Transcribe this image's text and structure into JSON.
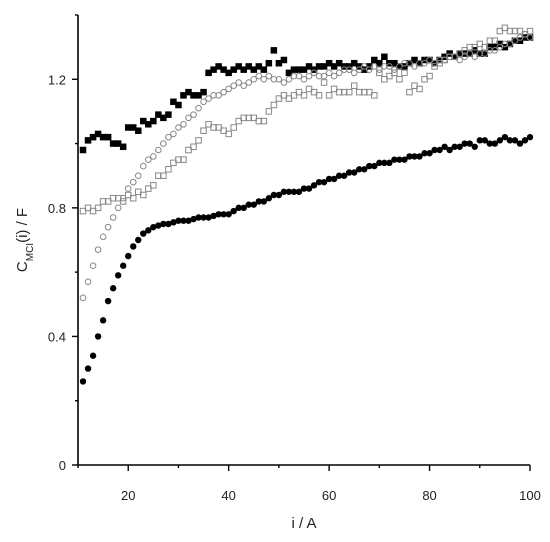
{
  "chart_data": {
    "type": "scatter",
    "xlabel": "i / A",
    "ylabel_main": "C",
    "ylabel_sub": "MCI",
    "ylabel_rest": "(i) / F",
    "xlim": [
      10,
      100
    ],
    "ylim": [
      0,
      1.4
    ],
    "x_ticks": [
      20,
      40,
      60,
      80,
      100
    ],
    "x_tick_labels": [
      "20",
      "40",
      "60",
      "80",
      "100"
    ],
    "y_ticks": [
      0,
      0.4,
      0.8,
      1.2
    ],
    "y_tick_labels": [
      "0",
      "0.4",
      "0.8",
      "1.2"
    ],
    "grid": false,
    "series": [
      {
        "marker": "square",
        "filled": true,
        "color": "#000000",
        "x": [
          11,
          12,
          13,
          14,
          15,
          16,
          17,
          18,
          19,
          20,
          21,
          22,
          23,
          24,
          25,
          26,
          27,
          28,
          29,
          30,
          31,
          32,
          33,
          34,
          35,
          36,
          37,
          38,
          39,
          40,
          41,
          42,
          43,
          44,
          45,
          46,
          47,
          48,
          49,
          50,
          51,
          52,
          53,
          54,
          55,
          56,
          57,
          58,
          59,
          60,
          61,
          62,
          63,
          64,
          65,
          66,
          67,
          68,
          69,
          70,
          71,
          72,
          73,
          74,
          75,
          76,
          77,
          78,
          79,
          80,
          81,
          82,
          83,
          84,
          85,
          86,
          87,
          88,
          89,
          90,
          91,
          92,
          93,
          94,
          95,
          96,
          97,
          98,
          99,
          100
        ],
        "y": [
          0.98,
          1.01,
          1.02,
          1.03,
          1.02,
          1.02,
          1.0,
          1.0,
          0.99,
          1.05,
          1.05,
          1.04,
          1.07,
          1.06,
          1.07,
          1.09,
          1.08,
          1.09,
          1.13,
          1.12,
          1.15,
          1.16,
          1.15,
          1.15,
          1.16,
          1.22,
          1.23,
          1.24,
          1.23,
          1.22,
          1.23,
          1.24,
          1.23,
          1.24,
          1.23,
          1.24,
          1.23,
          1.25,
          1.29,
          1.25,
          1.26,
          1.22,
          1.23,
          1.23,
          1.23,
          1.24,
          1.23,
          1.24,
          1.24,
          1.25,
          1.24,
          1.25,
          1.24,
          1.24,
          1.25,
          1.24,
          1.23,
          1.24,
          1.26,
          1.25,
          1.27,
          1.25,
          1.25,
          1.24,
          1.24,
          1.25,
          1.26,
          1.25,
          1.26,
          1.26,
          1.25,
          1.26,
          1.27,
          1.28,
          1.27,
          1.28,
          1.28,
          1.28,
          1.29,
          1.28,
          1.28,
          1.3,
          1.3,
          1.31,
          1.3,
          1.31,
          1.32,
          1.32,
          1.33,
          1.33
        ]
      },
      {
        "marker": "square",
        "filled": false,
        "color": "#888888",
        "x": [
          11,
          12,
          13,
          14,
          15,
          16,
          17,
          18,
          19,
          20,
          21,
          22,
          23,
          24,
          25,
          26,
          27,
          28,
          29,
          30,
          31,
          32,
          33,
          34,
          35,
          36,
          37,
          38,
          39,
          40,
          41,
          42,
          43,
          44,
          45,
          46,
          47,
          48,
          49,
          50,
          51,
          52,
          53,
          54,
          55,
          56,
          57,
          58,
          59,
          60,
          61,
          62,
          63,
          64,
          65,
          66,
          67,
          68,
          69,
          70,
          71,
          72,
          73,
          74,
          75,
          76,
          77,
          78,
          79,
          80,
          81,
          82,
          83,
          84,
          85,
          86,
          87,
          88,
          89,
          90,
          91,
          92,
          93,
          94,
          95,
          96,
          97,
          98,
          99,
          100
        ],
        "y": [
          0.79,
          0.8,
          0.79,
          0.8,
          0.82,
          0.82,
          0.83,
          0.83,
          0.82,
          0.84,
          0.83,
          0.85,
          0.84,
          0.86,
          0.87,
          0.9,
          0.9,
          0.92,
          0.94,
          0.95,
          0.95,
          0.98,
          0.99,
          1.01,
          1.04,
          1.06,
          1.05,
          1.05,
          1.04,
          1.03,
          1.05,
          1.07,
          1.08,
          1.08,
          1.08,
          1.07,
          1.07,
          1.1,
          1.12,
          1.14,
          1.15,
          1.14,
          1.15,
          1.16,
          1.15,
          1.17,
          1.16,
          1.15,
          1.19,
          1.15,
          1.17,
          1.16,
          1.16,
          1.16,
          1.18,
          1.16,
          1.16,
          1.16,
          1.15,
          1.22,
          1.2,
          1.21,
          1.22,
          1.2,
          1.22,
          1.16,
          1.18,
          1.17,
          1.2,
          1.21,
          1.24,
          1.25,
          1.26,
          1.27,
          1.27,
          1.28,
          1.29,
          1.3,
          1.3,
          1.31,
          1.3,
          1.32,
          1.32,
          1.35,
          1.36,
          1.35,
          1.35,
          1.35,
          1.34,
          1.35
        ]
      },
      {
        "marker": "circle",
        "filled": false,
        "color": "#888888",
        "x": [
          11,
          12,
          13,
          14,
          15,
          16,
          17,
          18,
          19,
          20,
          21,
          22,
          23,
          24,
          25,
          26,
          27,
          28,
          29,
          30,
          31,
          32,
          33,
          34,
          35,
          36,
          37,
          38,
          39,
          40,
          41,
          42,
          43,
          44,
          45,
          46,
          47,
          48,
          49,
          50,
          51,
          52,
          53,
          54,
          55,
          56,
          57,
          58,
          59,
          60,
          61,
          62,
          63,
          64,
          65,
          66,
          67,
          68,
          69,
          70,
          71,
          72,
          73,
          74,
          75,
          76,
          77,
          78,
          79,
          80,
          81,
          82,
          83,
          84,
          85,
          86,
          87,
          88,
          89,
          90,
          91,
          92,
          93,
          94,
          95,
          96,
          97,
          98,
          99,
          100
        ],
        "y": [
          0.52,
          0.57,
          0.62,
          0.67,
          0.71,
          0.74,
          0.77,
          0.8,
          0.83,
          0.86,
          0.88,
          0.9,
          0.93,
          0.95,
          0.96,
          0.98,
          1.0,
          1.02,
          1.03,
          1.05,
          1.06,
          1.08,
          1.09,
          1.11,
          1.13,
          1.14,
          1.15,
          1.15,
          1.16,
          1.17,
          1.18,
          1.19,
          1.18,
          1.19,
          1.2,
          1.21,
          1.2,
          1.21,
          1.2,
          1.2,
          1.19,
          1.2,
          1.21,
          1.21,
          1.2,
          1.21,
          1.22,
          1.21,
          1.21,
          1.22,
          1.21,
          1.22,
          1.23,
          1.23,
          1.22,
          1.23,
          1.24,
          1.23,
          1.24,
          1.23,
          1.24,
          1.24,
          1.23,
          1.24,
          1.25,
          1.25,
          1.24,
          1.25,
          1.25,
          1.26,
          1.25,
          1.26,
          1.26,
          1.27,
          1.27,
          1.26,
          1.27,
          1.28,
          1.27,
          1.28,
          1.28,
          1.29,
          1.29,
          1.3,
          1.31,
          1.31,
          1.32,
          1.33,
          1.34,
          1.33
        ]
      },
      {
        "marker": "circle",
        "filled": true,
        "color": "#000000",
        "x": [
          11,
          12,
          13,
          14,
          15,
          16,
          17,
          18,
          19,
          20,
          21,
          22,
          23,
          24,
          25,
          26,
          27,
          28,
          29,
          30,
          31,
          32,
          33,
          34,
          35,
          36,
          37,
          38,
          39,
          40,
          41,
          42,
          43,
          44,
          45,
          46,
          47,
          48,
          49,
          50,
          51,
          52,
          53,
          54,
          55,
          56,
          57,
          58,
          59,
          60,
          61,
          62,
          63,
          64,
          65,
          66,
          67,
          68,
          69,
          70,
          71,
          72,
          73,
          74,
          75,
          76,
          77,
          78,
          79,
          80,
          81,
          82,
          83,
          84,
          85,
          86,
          87,
          88,
          89,
          90,
          91,
          92,
          93,
          94,
          95,
          96,
          97,
          98,
          99,
          100
        ],
        "y": [
          0.26,
          0.3,
          0.34,
          0.4,
          0.45,
          0.51,
          0.55,
          0.59,
          0.62,
          0.65,
          0.68,
          0.7,
          0.72,
          0.73,
          0.74,
          0.745,
          0.75,
          0.75,
          0.755,
          0.76,
          0.76,
          0.76,
          0.765,
          0.77,
          0.77,
          0.77,
          0.775,
          0.78,
          0.78,
          0.78,
          0.79,
          0.8,
          0.8,
          0.81,
          0.81,
          0.82,
          0.82,
          0.83,
          0.84,
          0.84,
          0.85,
          0.85,
          0.85,
          0.85,
          0.86,
          0.86,
          0.87,
          0.88,
          0.88,
          0.89,
          0.89,
          0.9,
          0.9,
          0.91,
          0.91,
          0.92,
          0.92,
          0.93,
          0.93,
          0.94,
          0.94,
          0.94,
          0.95,
          0.95,
          0.95,
          0.96,
          0.96,
          0.96,
          0.97,
          0.97,
          0.98,
          0.98,
          0.99,
          0.98,
          0.99,
          0.99,
          1.0,
          1.0,
          0.99,
          1.01,
          1.01,
          1.0,
          1.0,
          1.01,
          1.02,
          1.01,
          1.01,
          1.0,
          1.01,
          1.02
        ]
      }
    ]
  }
}
